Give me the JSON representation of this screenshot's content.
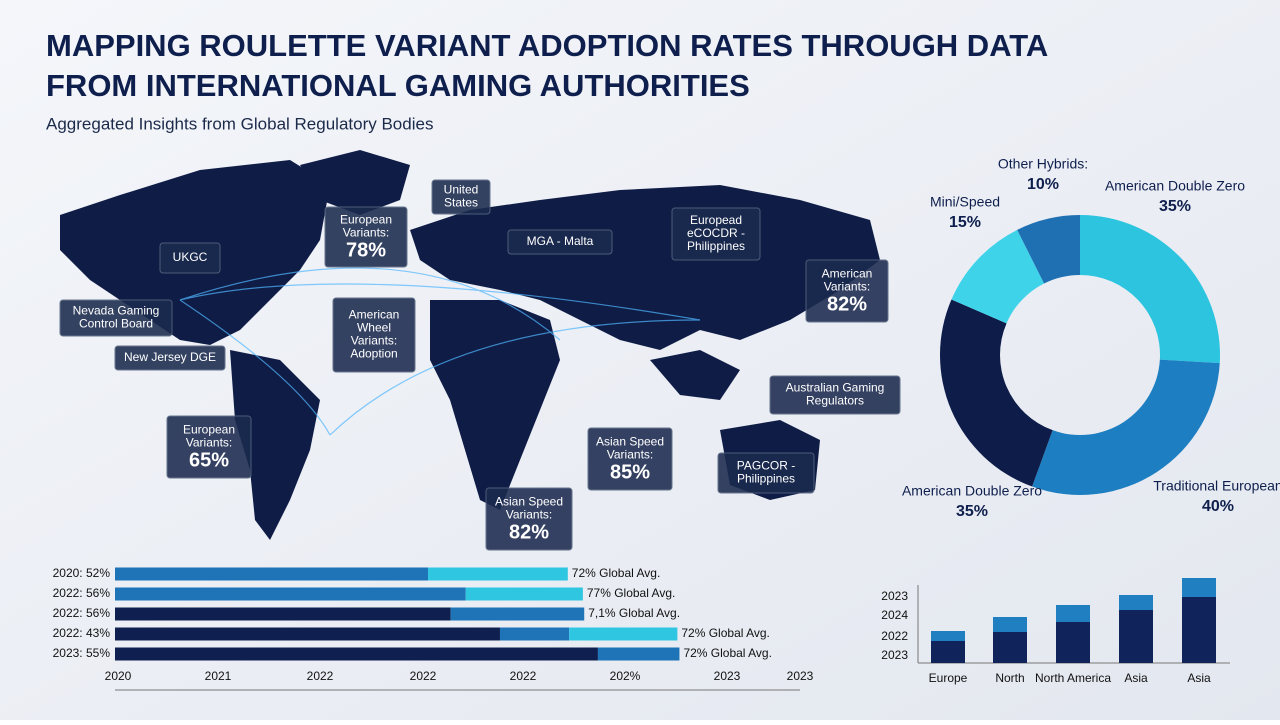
{
  "header": {
    "title_lines": [
      "MAPPING ROULETTE VARIANT ADOPTION RATES THROUGH DATA",
      "FROM INTERNATIONAL GAMING AUTHORITIES"
    ],
    "subtitle": "Aggregated Insights from Global Regulatory Bodies"
  },
  "map": {
    "callouts": [
      {
        "lines": [
          "UKGC"
        ]
      },
      {
        "lines": [
          "Nevada Gaming",
          "Control Board"
        ]
      },
      {
        "lines": [
          "New Jersey DGE"
        ]
      },
      {
        "lines": [
          "European",
          "Variants:"
        ],
        "value": "78%"
      },
      {
        "lines": [
          "United",
          "States"
        ]
      },
      {
        "lines": [
          "MGA - Malta"
        ]
      },
      {
        "lines": [
          "Europead",
          "eCOCDR -",
          "Philippines"
        ]
      },
      {
        "lines": [
          "American",
          "Variants:"
        ],
        "value": "82%"
      },
      {
        "lines": [
          "American",
          "Wheel",
          "Variants:",
          "Adoption"
        ]
      },
      {
        "lines": [
          "Australian Gaming",
          "Regulators"
        ]
      },
      {
        "lines": [
          "European",
          "Variants:"
        ],
        "value": "65%"
      },
      {
        "lines": [
          "Asian Speed",
          "Variants:"
        ],
        "value": "85%"
      },
      {
        "lines": [
          "PAGCOR -",
          "Philippines"
        ]
      },
      {
        "lines": [
          "Asian Speed",
          "Variants:"
        ],
        "value": "82%"
      }
    ]
  },
  "chart_data": [
    {
      "type": "donut",
      "categories": [
        "American Double Zero",
        "Traditional European",
        "American Double Zero",
        "Mini/Speed",
        "Other Hybrids:"
      ],
      "values": [
        35,
        40,
        35,
        15,
        10
      ],
      "value_labels": [
        "35%",
        "40%",
        "35%",
        "15%",
        "10%"
      ],
      "colors": [
        "#2cc4df",
        "#1d7fc1",
        "#0e1c4a",
        "#3fd3ea",
        "#1f6fb3"
      ]
    },
    {
      "type": "hbar-stacked",
      "categories": [
        "2020: 52%",
        "2022: 56%",
        "2022: 56%",
        "2022: 43%",
        "2023: 55%"
      ],
      "annotations": [
        "72% Global Avg.",
        "77% Global Avg.",
        "7,1% Global Avg.",
        "72% Global Avg.",
        "72% Global Avg."
      ],
      "axis_labels": [
        "2020",
        "2021",
        "2022",
        "2022",
        "2022",
        "202%",
        "2023",
        "2023"
      ],
      "xlim": [
        0,
        100
      ],
      "series": [
        {
          "color": "#0f1f4f",
          "values": [
            0,
            0,
            49,
            56.2,
            70.5
          ]
        },
        {
          "color": "#1f73b7",
          "values": [
            45.7,
            51.2,
            19.5,
            10.1,
            11.9
          ]
        },
        {
          "color": "#2fc6e2",
          "values": [
            20.4,
            17.1,
            0,
            15.8,
            0
          ]
        }
      ]
    },
    {
      "type": "bar-stacked",
      "categories": [
        "Europe",
        "North",
        "North America",
        "Asia",
        "Asia"
      ],
      "y_labels": [
        "2023",
        "2024",
        "2022",
        "2023"
      ],
      "ylim": [
        0,
        90
      ],
      "series": [
        {
          "color": "#10235a",
          "values": [
            22,
            31,
            41,
            53,
            66
          ]
        },
        {
          "color": "#1f7fc0",
          "values": [
            10,
            15,
            17,
            15,
            19
          ]
        }
      ]
    }
  ]
}
